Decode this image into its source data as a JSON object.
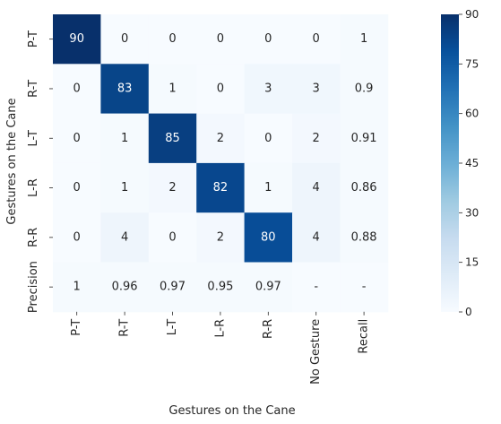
{
  "chart_data": {
    "type": "heatmap",
    "xlabel": "Gestures on the Cane",
    "ylabel": "Gestures on the Cane",
    "x_categories": [
      "P-T",
      "R-T",
      "L-T",
      "L-R",
      "R-R",
      "No Gesture",
      "Recall"
    ],
    "y_categories": [
      "P-T",
      "R-T",
      "L-T",
      "L-R",
      "R-R",
      "Precision"
    ],
    "cells": [
      [
        "90",
        "0",
        "0",
        "0",
        "0",
        "0",
        "1"
      ],
      [
        "0",
        "83",
        "1",
        "0",
        "3",
        "3",
        "0.9"
      ],
      [
        "0",
        "1",
        "85",
        "2",
        "0",
        "2",
        "0.91"
      ],
      [
        "0",
        "1",
        "2",
        "82",
        "1",
        "4",
        "0.86"
      ],
      [
        "0",
        "4",
        "0",
        "2",
        "80",
        "4",
        "0.88"
      ],
      [
        "1",
        "0.96",
        "0.97",
        "0.95",
        "0.97",
        "-",
        "-"
      ]
    ],
    "colorbar": {
      "min": 0,
      "max": 90,
      "ticks": [
        "0",
        "15",
        "30",
        "45",
        "60",
        "75",
        "90"
      ]
    },
    "colors": {
      "low": "#f7fbff",
      "high": "#08306b",
      "text_dark": "#262626",
      "text_light": "#ffffff"
    }
  }
}
